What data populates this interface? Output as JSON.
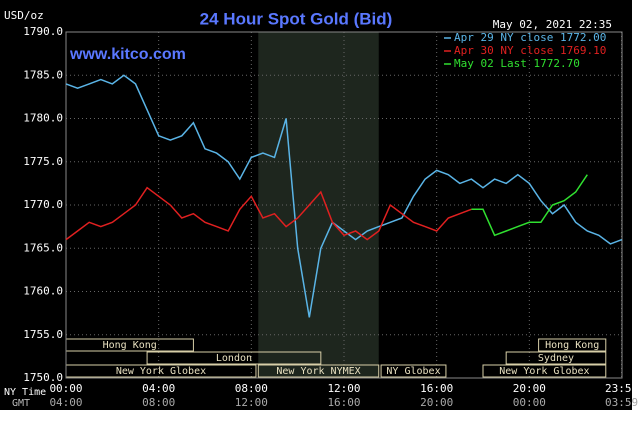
{
  "chart_data": {
    "type": "line",
    "title": "24 Hour Spot Gold (Bid)",
    "unit_label": "USD/oz",
    "timestamp": "May 02, 2021 22:35",
    "watermark": "www.kitco.com",
    "x_row_labels": [
      "NY Time",
      "GMT"
    ],
    "xlim": [
      0,
      24
    ],
    "xticks": [
      {
        "value": 0,
        "label": "00:00"
      },
      {
        "value": 4,
        "label": "04:00"
      },
      {
        "value": 8,
        "label": "08:00"
      },
      {
        "value": 12,
        "label": "12:00"
      },
      {
        "value": 16,
        "label": "16:00"
      },
      {
        "value": 20,
        "label": "20:00"
      },
      {
        "value": 23.98,
        "label": "23:59"
      }
    ],
    "gmt_ticks": [
      {
        "value": 0,
        "label": "04:00"
      },
      {
        "value": 4,
        "label": "08:00"
      },
      {
        "value": 8,
        "label": "12:00"
      },
      {
        "value": 12,
        "label": "16:00"
      },
      {
        "value": 16,
        "label": "20:00"
      },
      {
        "value": 20,
        "label": "00:00"
      },
      {
        "value": 23.98,
        "label": "03:59"
      }
    ],
    "ylim": [
      1750,
      1790
    ],
    "yticks": [
      {
        "value": 1750,
        "label": "1750.0"
      },
      {
        "value": 1755,
        "label": "1755.0"
      },
      {
        "value": 1760,
        "label": "1760.0"
      },
      {
        "value": 1765,
        "label": "1765.0"
      },
      {
        "value": 1770,
        "label": "1770.0"
      },
      {
        "value": 1775,
        "label": "1775.0"
      },
      {
        "value": 1780,
        "label": "1780.0"
      },
      {
        "value": 1785,
        "label": "1785.0"
      },
      {
        "value": 1790,
        "label": "1790.0"
      }
    ],
    "grid": true,
    "highlight": [
      8.3,
      13.5
    ],
    "sessions": [
      {
        "label": "Hong Kong",
        "start": 0,
        "end": 5.5,
        "row": 0
      },
      {
        "label": "Hong Kong",
        "start": 20.4,
        "end": 23.3,
        "row": 0
      },
      {
        "label": "London",
        "start": 3.5,
        "end": 11,
        "row": 1
      },
      {
        "label": "Sydney",
        "start": 19,
        "end": 23.3,
        "row": 1
      },
      {
        "label": "New York Globex",
        "start": 0,
        "end": 8.2,
        "row": 2
      },
      {
        "label": "New York NYMEX",
        "start": 8.3,
        "end": 13.5,
        "row": 2
      },
      {
        "label": "NY Globex",
        "start": 13.6,
        "end": 16.4,
        "row": 2
      },
      {
        "label": "New York Globex",
        "start": 18,
        "end": 23.3,
        "row": 2
      }
    ],
    "x": [
      0,
      0.5,
      1,
      1.5,
      2,
      2.5,
      3,
      3.5,
      4,
      4.5,
      5,
      5.5,
      6,
      6.5,
      7,
      7.5,
      8,
      8.5,
      9,
      9.5,
      10,
      10.5,
      11,
      11.5,
      12,
      12.5,
      13,
      13.5,
      14,
      14.5,
      15,
      15.5,
      16,
      16.5,
      17,
      17.5,
      18,
      18.5,
      19,
      19.5,
      20,
      20.5,
      21,
      21.5,
      22,
      22.5,
      23,
      23.5,
      24
    ],
    "series": [
      {
        "name": "Apr 29 NY close 1772.00",
        "color": "#5ab4e6",
        "values": [
          1784,
          1783.5,
          1784,
          1784.5,
          1784,
          1785,
          1784,
          1781,
          1778,
          1777.5,
          1778,
          1779.5,
          1776.5,
          1776,
          1775,
          1773,
          1775.5,
          1776,
          1775.5,
          1780,
          1765,
          1757,
          1765,
          1768,
          1767,
          1766,
          1767,
          1767.5,
          1768,
          1768.5,
          1771,
          1773,
          1774,
          1773.5,
          1772.5,
          1773,
          1772,
          1773,
          1772.5,
          1773.5,
          1772.5,
          1770.5,
          1769,
          1770,
          1768,
          1767,
          1766.5,
          1765.5,
          1766
        ]
      },
      {
        "name": "Apr 30 NY close 1769.10",
        "color": "#e02020",
        "values": [
          1766,
          1767,
          1768,
          1767.5,
          1768,
          1769,
          1770,
          1772,
          1771,
          1770,
          1768.5,
          1769,
          1768,
          1767.5,
          1767,
          1769.5,
          1771,
          1768.5,
          1769,
          1767.5,
          1768.5,
          1770,
          1771.5,
          1768,
          1766.5,
          1767,
          1766,
          1767,
          1770,
          1769,
          1768,
          1767.5,
          1767,
          1768.5,
          1769,
          1769.5,
          null,
          null,
          null,
          null,
          null,
          null,
          null,
          null,
          null,
          null,
          null,
          null,
          null
        ]
      },
      {
        "name": "May 02 Last 1772.70",
        "color": "#30e030",
        "values": [
          null,
          null,
          null,
          null,
          null,
          null,
          null,
          null,
          null,
          null,
          null,
          null,
          null,
          null,
          null,
          null,
          null,
          null,
          null,
          null,
          null,
          null,
          null,
          null,
          null,
          null,
          null,
          null,
          null,
          null,
          null,
          null,
          null,
          null,
          null,
          1769.5,
          1769.5,
          1766.5,
          1767,
          1767.5,
          1768,
          1768,
          1770,
          1770.5,
          1771.5,
          1773.5,
          null,
          null,
          null
        ]
      }
    ]
  }
}
